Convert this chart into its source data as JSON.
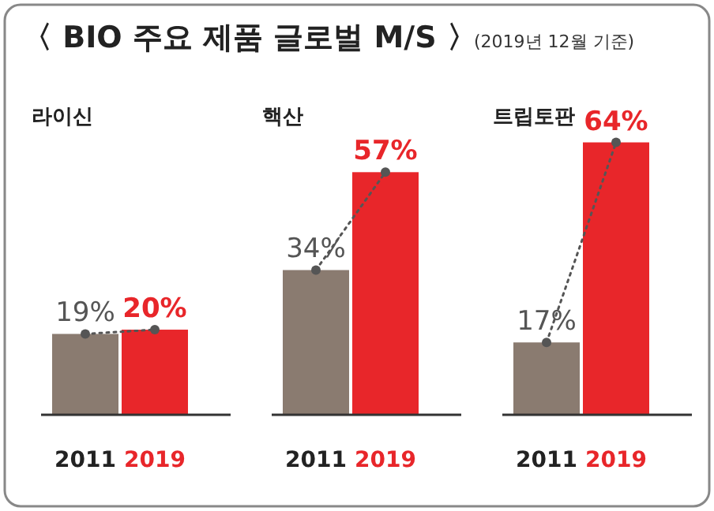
{
  "chart_data": [
    {
      "type": "bar",
      "title": "라이신",
      "annotations": [
        "〈 BIO 주요 제품 글로벌 M/S 〉",
        "(2019년 12월 기준)"
      ],
      "categories": [
        "2011",
        "2019"
      ],
      "values": [
        19,
        20
      ],
      "colors": [
        "#8a7b70",
        "#e8262a"
      ],
      "value_labels": [
        "19%",
        "20%"
      ],
      "series": [
        {
          "type": "line",
          "values": [
            19,
            20
          ],
          "color": "#555555",
          "line_style": "dotted",
          "marker": "circle"
        }
      ]
    },
    {
      "type": "bar",
      "title": "핵산",
      "categories": [
        "2011",
        "2019"
      ],
      "values": [
        34,
        57
      ],
      "colors": [
        "#8a7b70",
        "#e8262a"
      ],
      "value_labels": [
        "34%",
        "57%"
      ],
      "series": [
        {
          "type": "line",
          "values": [
            34,
            57
          ],
          "color": "#555555",
          "line_style": "dotted",
          "marker": "circle"
        }
      ]
    },
    {
      "type": "bar",
      "title": "트립토판",
      "categories": [
        "2011",
        "2019"
      ],
      "values": [
        17,
        64
      ],
      "colors": [
        "#8a7b70",
        "#e8262a"
      ],
      "value_labels": [
        "17%",
        "64%"
      ],
      "series": [
        {
          "type": "line",
          "values": [
            17,
            64
          ],
          "color": "#555555",
          "line_style": "dotted",
          "marker": "circle"
        }
      ]
    }
  ]
}
